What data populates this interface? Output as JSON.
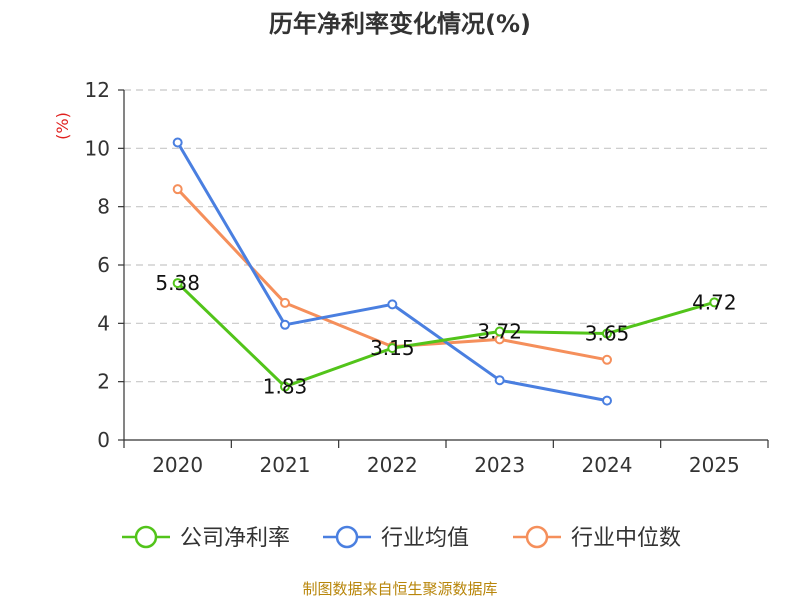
{
  "chart_data": {
    "type": "line",
    "title": "历年净利率变化情况(%)",
    "ylabel": "(%)",
    "xlabel": "",
    "categories": [
      "2020",
      "2021",
      "2022",
      "2023",
      "2024",
      "2025"
    ],
    "ylim": [
      0,
      12
    ],
    "yticks": [
      0,
      2,
      4,
      6,
      8,
      10,
      12
    ],
    "grid": true,
    "legend_position": "bottom",
    "series": [
      {
        "name": "公司净利率",
        "color": "#52c41a",
        "values": [
          5.38,
          1.83,
          3.15,
          3.72,
          3.65,
          4.72
        ],
        "labels": [
          "5.38",
          "1.83",
          "3.15",
          "3.72",
          "3.65",
          "4.72"
        ]
      },
      {
        "name": "行业均值",
        "color": "#4a7fe0",
        "values": [
          10.2,
          3.95,
          4.65,
          2.05,
          1.35,
          null
        ]
      },
      {
        "name": "行业中位数",
        "color": "#f58f5b",
        "values": [
          8.6,
          4.7,
          3.2,
          3.45,
          2.75,
          null
        ]
      }
    ]
  },
  "source": "制图数据来自恒生聚源数据库"
}
